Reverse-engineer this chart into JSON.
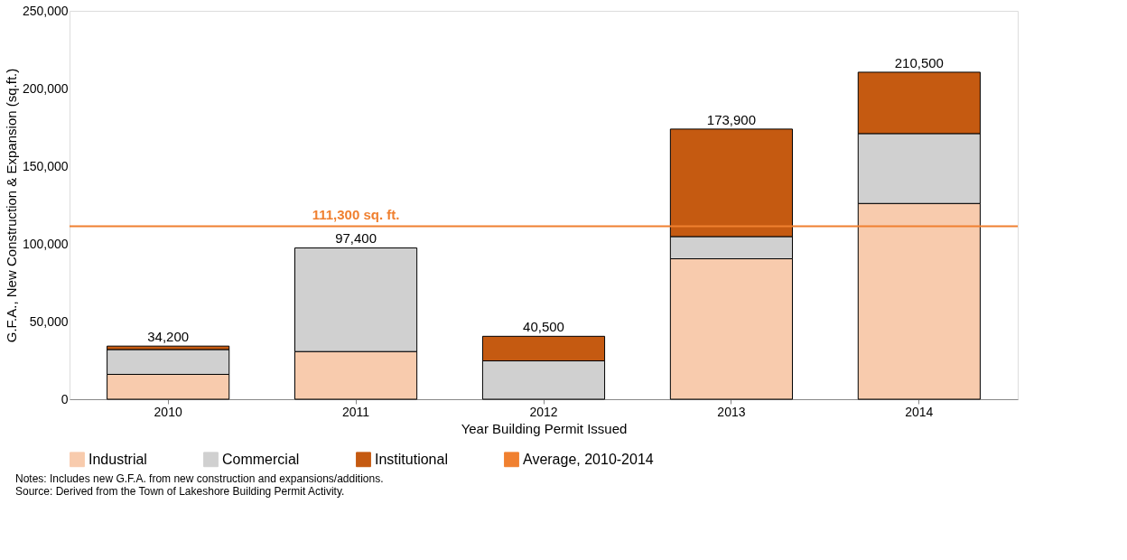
{
  "chart_data": {
    "type": "bar",
    "stacked": true,
    "xlabel": "Year Building Permit Issued",
    "ylabel": "G.F.A., New Construction & Expansion  (sq.ft.)",
    "categories": [
      "2010",
      "2011",
      "2012",
      "2013",
      "2014"
    ],
    "series": [
      {
        "name": "Industrial",
        "color": "#f8cbad",
        "values": [
          16000,
          30700,
          0,
          90400,
          126000
        ]
      },
      {
        "name": "Commercial",
        "color": "#d0d0d0",
        "values": [
          16000,
          66700,
          24700,
          14300,
          45000
        ]
      },
      {
        "name": "Institutional",
        "color": "#c55a11",
        "values": [
          2200,
          0,
          15800,
          69200,
          39500
        ]
      }
    ],
    "totals": [
      "34,200",
      "97,400",
      "40,500",
      "173,900",
      "210,500"
    ],
    "ylim": [
      0,
      250000
    ],
    "yticks": [
      {
        "value": 0,
        "label": "0"
      },
      {
        "value": 50000,
        "label": "50,000"
      },
      {
        "value": 100000,
        "label": "100,000"
      },
      {
        "value": 150000,
        "label": "150,000"
      },
      {
        "value": 200000,
        "label": "200,000"
      },
      {
        "value": 250000,
        "label": "250,000"
      }
    ],
    "ref_lines": [
      {
        "axis": "y",
        "value": 111300,
        "label": "Average, 2010-2014",
        "color": "#f08030"
      }
    ],
    "annotations": [
      {
        "text": "111,300 sq. ft.",
        "x": "2011",
        "y": 111300
      },
      "Notes: Includes new G.F.A. from new construction and expansions/additions.",
      "Source: Derived from the Town of Lakeshore Building Permit Activity."
    ],
    "legend": "bottom",
    "grid": false
  }
}
